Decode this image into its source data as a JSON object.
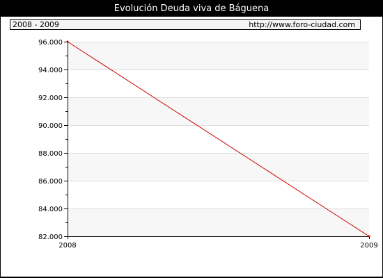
{
  "chart_title": "Evolución Deuda viva de Báguena",
  "info_bar": {
    "period": "2008 - 2009",
    "source_url": "http://www.foro-ciudad.com"
  },
  "colors": {
    "frame": "#000000",
    "plot_band": "#f7f7f7",
    "grid": "#dddddd",
    "line": "#cc0000"
  },
  "chart_data": {
    "type": "line",
    "title": "Evolución Deuda viva de Báguena",
    "xlabel": "",
    "ylabel": "",
    "x": [
      "2008",
      "2009"
    ],
    "series": [
      {
        "values": [
          96000,
          82000
        ]
      }
    ],
    "ylim": [
      82000,
      96000
    ],
    "y_ticks": [
      82000,
      84000,
      86000,
      88000,
      90000,
      92000,
      94000,
      96000
    ],
    "y_tick_labels": [
      "82.000",
      "84.000",
      "86.000",
      "88.000",
      "90.000",
      "92.000",
      "94.000",
      "96.000"
    ],
    "x_tick_labels": [
      "2008",
      "2009"
    ],
    "grid": true,
    "legend": "none"
  }
}
